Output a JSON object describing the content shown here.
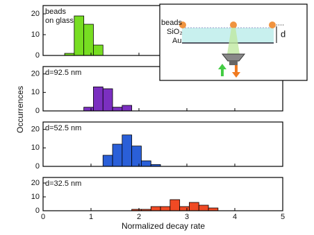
{
  "chart_data": [
    {
      "type": "histogram",
      "label": [
        "beads",
        "on glass"
      ],
      "bins": [
        0.45,
        0.65,
        0.85,
        1.05,
        1.25
      ],
      "values": [
        1,
        19,
        15,
        5
      ],
      "color": "#77dd22",
      "xlim": [
        0,
        5
      ],
      "xticks": [
        0,
        1,
        2,
        3,
        4,
        5
      ],
      "ylim": [
        0,
        24
      ],
      "yticks": [
        0,
        10,
        20
      ]
    },
    {
      "type": "histogram",
      "label": [
        "d=92.5 nm"
      ],
      "bins": [
        0.85,
        1.05,
        1.25,
        1.45,
        1.65,
        1.85
      ],
      "values": [
        2,
        13,
        12,
        2,
        3
      ],
      "color": "#7b2fc0",
      "xlim": [
        0,
        5
      ],
      "xticks": [
        0,
        1,
        2,
        3,
        4,
        5
      ],
      "ylim": [
        0,
        24
      ],
      "yticks": [
        0,
        10,
        20
      ]
    },
    {
      "type": "histogram",
      "label": [
        "d=52.5 nm"
      ],
      "bins": [
        1.25,
        1.45,
        1.65,
        1.85,
        2.05,
        2.25,
        2.45
      ],
      "values": [
        6,
        12,
        17,
        11,
        3,
        1
      ],
      "color": "#2a5fd8",
      "xlim": [
        0,
        5
      ],
      "xticks": [
        0,
        1,
        2,
        3,
        4,
        5
      ],
      "ylim": [
        0,
        24
      ],
      "yticks": [
        0,
        10,
        20
      ]
    },
    {
      "type": "histogram",
      "label": [
        "d=32.5 nm"
      ],
      "bins": [
        1.85,
        2.05,
        2.25,
        2.45,
        2.65,
        2.85,
        3.05,
        3.25,
        3.45,
        3.65
      ],
      "values": [
        1,
        1,
        3,
        3,
        8,
        3,
        6,
        4,
        2
      ],
      "color": "#f04a24",
      "xlim": [
        0,
        5
      ],
      "xticks": [
        0,
        1,
        2,
        3,
        4,
        5
      ],
      "ylim": [
        0,
        24
      ],
      "yticks": [
        0,
        10,
        20
      ],
      "x_label": "Normalized decay rate"
    }
  ],
  "y_label": "Occurrences",
  "inset": {
    "beads": "beads",
    "oxide": "SiO₂",
    "metal": "Au",
    "distance": "d"
  }
}
